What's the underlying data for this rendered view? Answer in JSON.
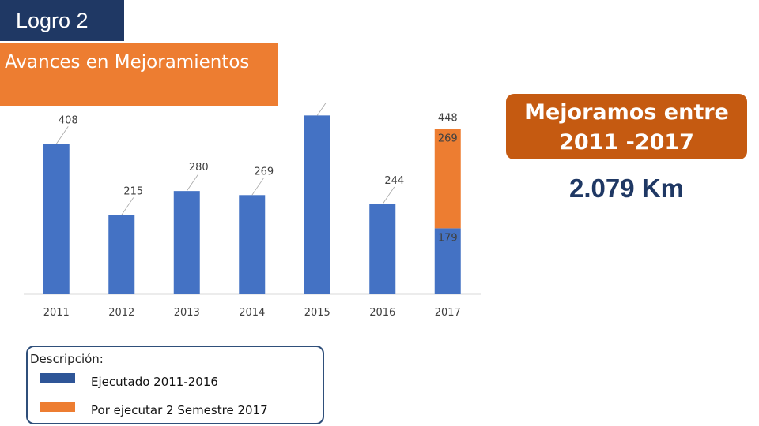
{
  "header": {
    "badge": "Logro 2",
    "section_title": "Avances en Mejoramientos"
  },
  "callout": {
    "title": "Mejoramos entre 2011 -2017",
    "total": "2.079 Km"
  },
  "legend": {
    "title": "Descripción:",
    "items": [
      {
        "label": "Ejecutado 2011-2016",
        "color": "#4472c4"
      },
      {
        "label": "Por ejecutar 2 Semestre 2017",
        "color": "#ed7d31"
      }
    ]
  },
  "chart_data": {
    "type": "bar",
    "stacked": true,
    "categories": [
      "2011",
      "2012",
      "2013",
      "2014",
      "2015",
      "2016",
      "2017"
    ],
    "series": [
      {
        "name": "Ejecutado 2011-2016",
        "color": "#4472c4",
        "values": [
          408,
          215,
          280,
          269,
          485,
          244,
          179
        ]
      },
      {
        "name": "Por ejecutar 2 Semestre 2017",
        "color": "#ed7d31",
        "values": [
          0,
          0,
          0,
          0,
          0,
          0,
          269
        ]
      }
    ],
    "totals": [
      null,
      null,
      null,
      null,
      null,
      null,
      448
    ],
    "ylim": [
      0,
      520
    ],
    "grid": false,
    "legend_position": "bottom-left"
  }
}
